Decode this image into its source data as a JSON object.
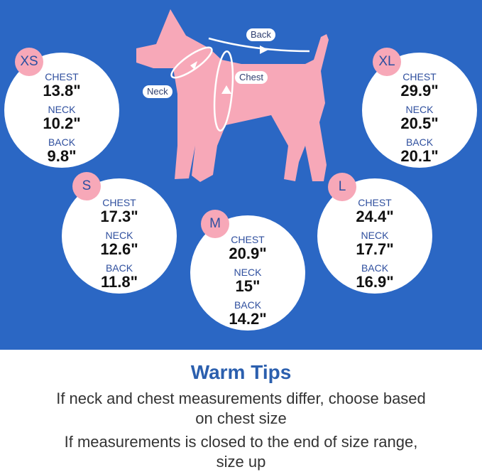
{
  "colors": {
    "background": "#2b67c4",
    "dog": "#f7a8b8",
    "badge": "#f7a8b8",
    "label": "#2f4f9e",
    "title": "#2b5fae"
  },
  "diagram_labels": {
    "back": "Back",
    "chest": "Chest",
    "neck": "Neck"
  },
  "sizes": [
    {
      "size": "XS",
      "chest_label": "CHEST",
      "chest": "13.8\"",
      "neck_label": "NECK",
      "neck": "10.2\"",
      "back_label": "BACK",
      "back": "9.8\""
    },
    {
      "size": "XL",
      "chest_label": "CHEST",
      "chest": "29.9\"",
      "neck_label": "NECK",
      "neck": "20.5\"",
      "back_label": "BACK",
      "back": "20.1\""
    },
    {
      "size": "S",
      "chest_label": "CHEST",
      "chest": "17.3\"",
      "neck_label": "NECK",
      "neck": "12.6\"",
      "back_label": "BACK",
      "back": "11.8\""
    },
    {
      "size": "M",
      "chest_label": "CHEST",
      "chest": "20.9\"",
      "neck_label": "NECK",
      "neck": "15\"",
      "back_label": "BACK",
      "back": "14.2\""
    },
    {
      "size": "L",
      "chest_label": "CHEST",
      "chest": "24.4\"",
      "neck_label": "NECK",
      "neck": "17.7\"",
      "back_label": "BACK",
      "back": "16.9\""
    }
  ],
  "tips": {
    "title": "Warm Tips",
    "line1a": "If neck and chest measurements differ, choose based",
    "line1b": "on chest size",
    "line2a": "If measurements is closed to the end of size range,",
    "line2b": "size up"
  }
}
